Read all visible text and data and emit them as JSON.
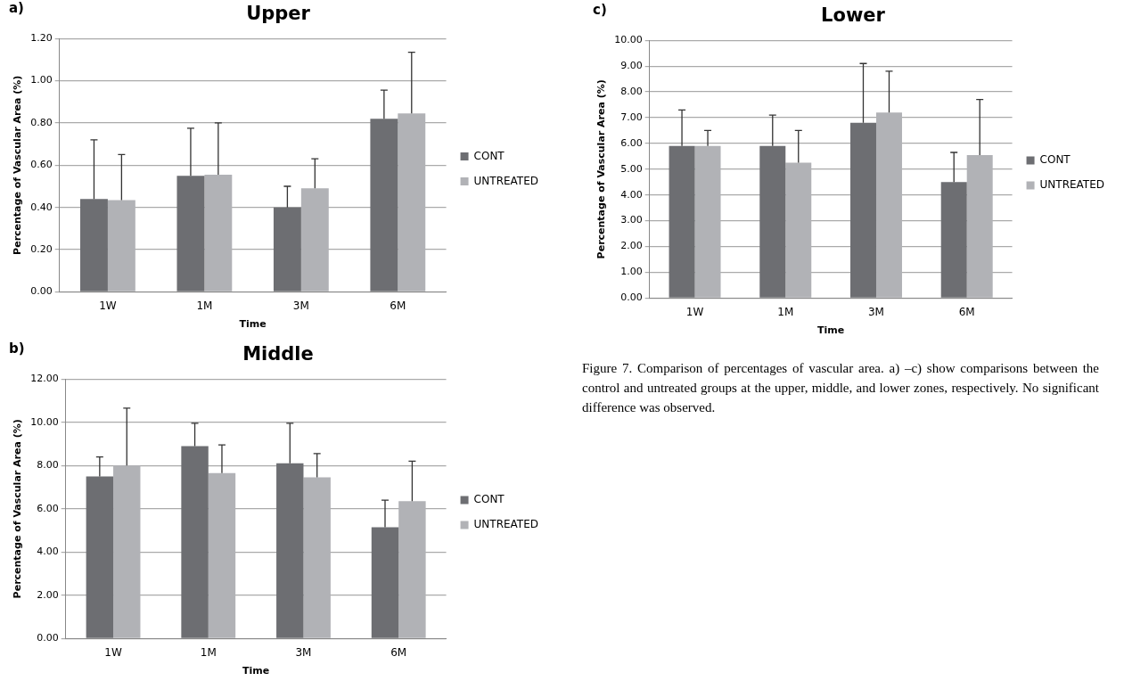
{
  "chart_data": [
    {
      "type": "bar",
      "title": "Upper",
      "xlabel": "Time",
      "ylabel": "Percentage of Vascular Area (%)",
      "annotations": [
        "a)"
      ],
      "categories": [
        "1W",
        "1M",
        "3M",
        "6M"
      ],
      "series": [
        {
          "name": "CONT",
          "color": "#6d6e72",
          "values": [
            0.44,
            0.55,
            0.4,
            0.82
          ],
          "errors": [
            [
              0.44,
              0.72
            ],
            [
              0.55,
              0.775
            ],
            [
              0.4,
              0.5
            ],
            [
              0.82,
              0.955
            ]
          ]
        },
        {
          "name": "UNTREATED",
          "color": "#b1b2b6",
          "values": [
            0.435,
            0.555,
            0.49,
            0.845
          ],
          "errors": [
            [
              0.435,
              0.65
            ],
            [
              0.555,
              0.8
            ],
            [
              0.49,
              0.63
            ],
            [
              0.845,
              1.135
            ]
          ]
        }
      ],
      "ylim": [
        0,
        1.2
      ],
      "yticks": [
        {
          "value": 0,
          "label": "0.00"
        },
        {
          "value": 0.2,
          "label": "0.20"
        },
        {
          "value": 0.4,
          "label": "0.40"
        },
        {
          "value": 0.6,
          "label": "0.60"
        },
        {
          "value": 0.8,
          "label": "0.80"
        },
        {
          "value": 1,
          "label": "1.00"
        },
        {
          "value": 1.2,
          "label": "1.20"
        }
      ],
      "grid": "y",
      "legend": "right"
    },
    {
      "type": "bar",
      "title": "Middle",
      "xlabel": "Time",
      "ylabel": "Percentage of Vascular Area (%)",
      "annotations": [
        "b)"
      ],
      "categories": [
        "1W",
        "1M",
        "3M",
        "6M"
      ],
      "series": [
        {
          "name": "CONT",
          "color": "#6d6e72",
          "values": [
            7.5,
            8.9,
            8.1,
            5.15
          ],
          "errors": [
            [
              7.5,
              8.4
            ],
            [
              8.9,
              9.95
            ],
            [
              8.1,
              9.95
            ],
            [
              5.15,
              6.4
            ]
          ]
        },
        {
          "name": "UNTREATED",
          "color": "#b1b2b6",
          "values": [
            8.0,
            7.65,
            7.45,
            6.35
          ],
          "errors": [
            [
              8.0,
              10.65
            ],
            [
              7.65,
              8.95
            ],
            [
              7.45,
              8.55
            ],
            [
              6.35,
              8.2
            ]
          ]
        }
      ],
      "ylim": [
        0,
        12
      ],
      "yticks": [
        {
          "value": 0,
          "label": "0.00"
        },
        {
          "value": 2,
          "label": "2.00"
        },
        {
          "value": 4,
          "label": "4.00"
        },
        {
          "value": 6,
          "label": "6.00"
        },
        {
          "value": 8,
          "label": "8.00"
        },
        {
          "value": 10,
          "label": "10.00"
        },
        {
          "value": 12,
          "label": "12.00"
        }
      ],
      "grid": "y",
      "legend": "right"
    },
    {
      "type": "bar",
      "title": "Lower",
      "xlabel": "Time",
      "ylabel": "Percentage of Vascular Area (%)",
      "annotations": [
        "c)",
        "Figure 7. Comparison of percentages of vascular area. a) –c) show comparisons between the control and untreated groups at the upper, middle, and lower zones, respectively. No significant difference was observed."
      ],
      "categories": [
        "1W",
        "1M",
        "3M",
        "6M"
      ],
      "series": [
        {
          "name": "CONT",
          "color": "#6d6e72",
          "values": [
            5.9,
            5.9,
            6.8,
            4.5
          ],
          "errors": [
            [
              5.9,
              7.3
            ],
            [
              5.9,
              7.1
            ],
            [
              6.8,
              9.1
            ],
            [
              4.5,
              5.65
            ]
          ]
        },
        {
          "name": "UNTREATED",
          "color": "#b1b2b6",
          "values": [
            5.9,
            5.25,
            7.2,
            5.55
          ],
          "errors": [
            [
              5.9,
              6.5
            ],
            [
              5.25,
              6.5
            ],
            [
              7.2,
              8.8
            ],
            [
              5.55,
              7.7
            ]
          ]
        }
      ],
      "ylim": [
        0,
        10
      ],
      "yticks": [
        {
          "value": 0,
          "label": "0.00"
        },
        {
          "value": 1,
          "label": "1.00"
        },
        {
          "value": 2,
          "label": "2.00"
        },
        {
          "value": 3,
          "label": "3.00"
        },
        {
          "value": 4,
          "label": "4.00"
        },
        {
          "value": 5,
          "label": "5.00"
        },
        {
          "value": 6,
          "label": "6.00"
        },
        {
          "value": 7,
          "label": "7.00"
        },
        {
          "value": 8,
          "label": "8.00"
        },
        {
          "value": 9,
          "label": "9.00"
        },
        {
          "value": 10,
          "label": "10.00"
        }
      ],
      "grid": "y",
      "legend": "right"
    }
  ]
}
